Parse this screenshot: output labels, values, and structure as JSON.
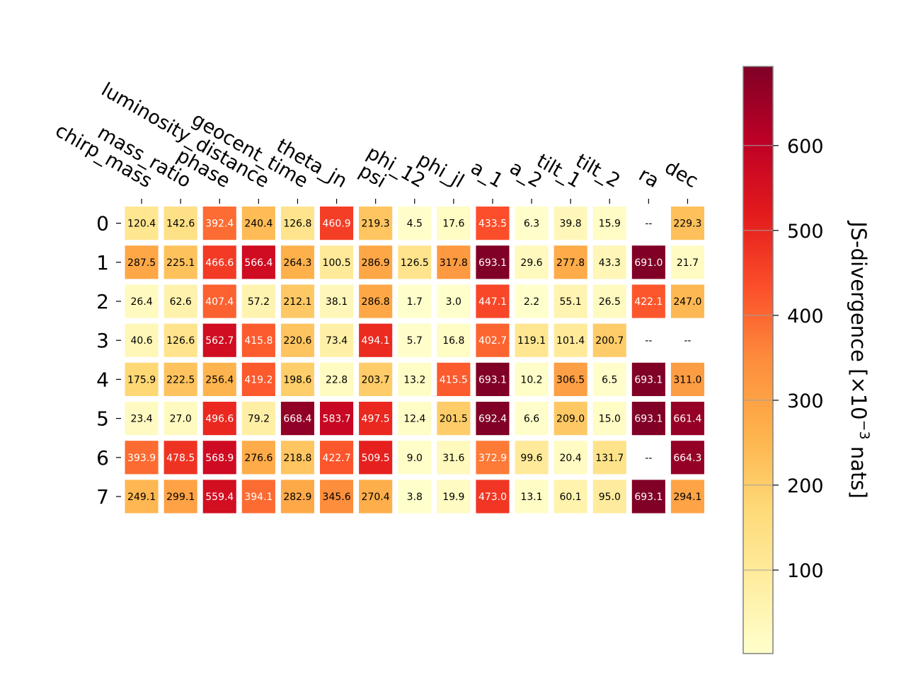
{
  "chart_data": {
    "type": "heatmap",
    "columns": [
      "chirp_mass",
      "mass_ratio",
      "phase",
      "luminosity_distance",
      "geocent_time",
      "theta_jn",
      "psi",
      "phi_12",
      "phi_jl",
      "a_1",
      "a_2",
      "tilt_1",
      "tilt_2",
      "ra",
      "dec"
    ],
    "rows": [
      "0",
      "1",
      "2",
      "3",
      "4",
      "5",
      "6",
      "7"
    ],
    "values": [
      [
        120.4,
        142.6,
        392.4,
        240.4,
        126.8,
        460.9,
        219.3,
        4.5,
        17.6,
        433.5,
        6.3,
        39.8,
        15.9,
        null,
        229.3
      ],
      [
        287.5,
        225.1,
        466.6,
        566.4,
        264.3,
        100.5,
        286.9,
        126.5,
        317.8,
        693.1,
        29.6,
        277.8,
        43.3,
        691.0,
        21.7
      ],
      [
        26.4,
        62.6,
        407.4,
        57.2,
        212.1,
        38.1,
        286.8,
        1.7,
        3.0,
        447.1,
        2.2,
        55.1,
        26.5,
        422.1,
        247.0
      ],
      [
        40.6,
        126.6,
        562.7,
        415.8,
        220.6,
        73.4,
        494.1,
        5.7,
        16.8,
        402.7,
        119.1,
        101.4,
        200.7,
        null,
        null
      ],
      [
        175.9,
        222.5,
        256.4,
        419.2,
        198.6,
        22.8,
        203.7,
        13.2,
        415.5,
        693.1,
        10.2,
        306.5,
        6.5,
        693.1,
        311.0
      ],
      [
        23.4,
        27.0,
        496.6,
        79.2,
        668.4,
        583.7,
        497.5,
        12.4,
        201.5,
        692.4,
        6.6,
        209.0,
        15.0,
        693.1,
        661.4
      ],
      [
        393.9,
        478.5,
        568.9,
        276.6,
        218.8,
        422.7,
        509.5,
        9.0,
        31.6,
        372.9,
        99.6,
        20.4,
        131.7,
        null,
        664.3
      ],
      [
        249.1,
        299.1,
        559.4,
        394.1,
        282.9,
        345.6,
        270.4,
        3.8,
        19.9,
        473.0,
        13.1,
        60.1,
        95.0,
        693.1,
        294.1
      ]
    ],
    "missing_label": "--",
    "colorbar": {
      "label": "JS-divergence [×10",
      "label_exponent": "−3",
      "label_suffix": " nats]",
      "range": [
        1.7,
        693.1
      ],
      "ticks": [
        100,
        200,
        300,
        400,
        500,
        600
      ],
      "colormap": "YlOrRd"
    },
    "grid": false
  }
}
